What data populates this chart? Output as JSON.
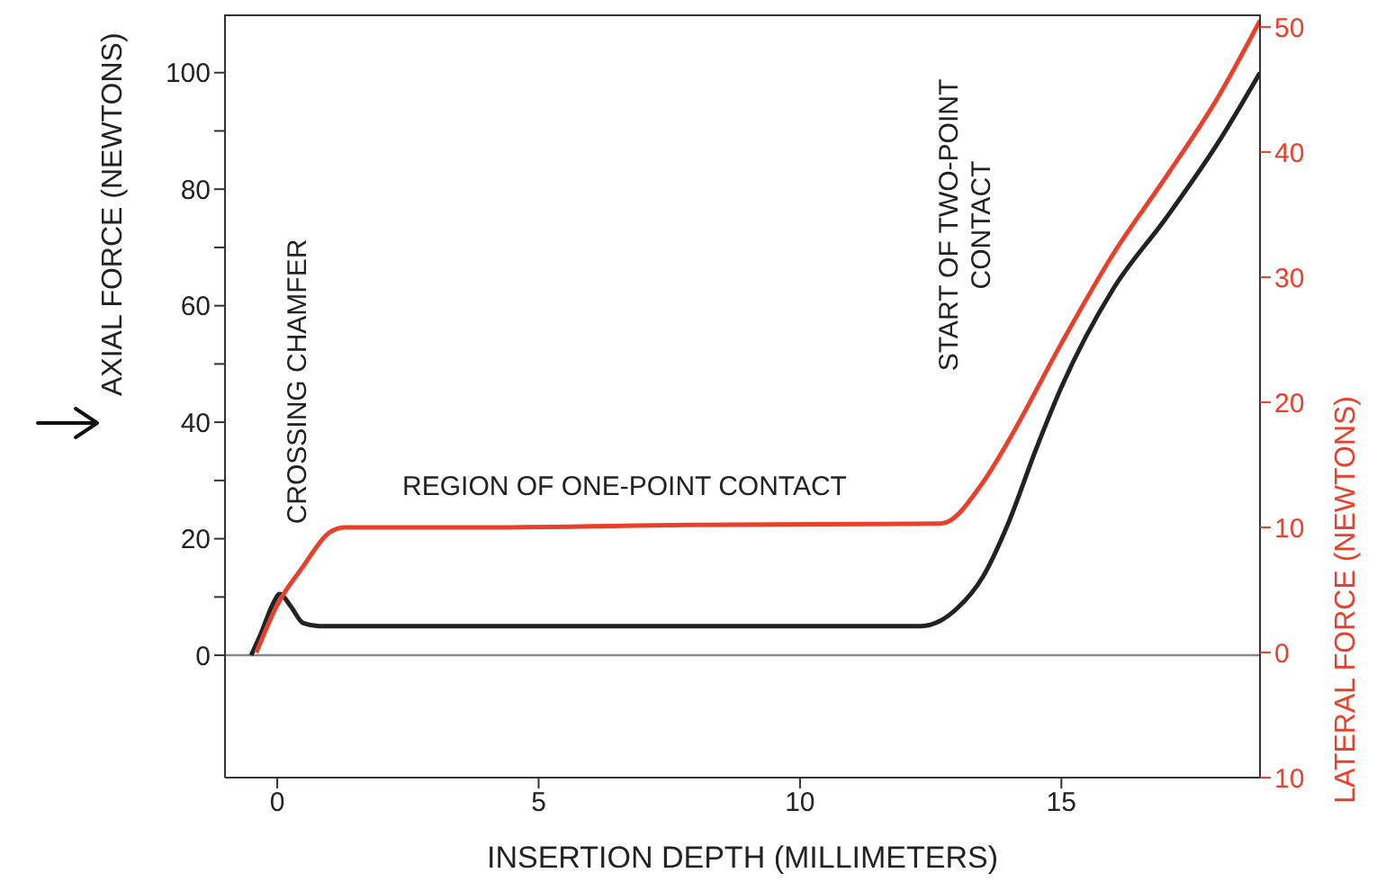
{
  "chart_data": {
    "type": "line",
    "xlabel": "INSERTION DEPTH (MILLIMETERS)",
    "ylabel": "AXIAL FORCE (NEWTONS)",
    "y2label": "LATERAL FORCE (NEWTONS)",
    "xlim": [
      -1,
      18.8
    ],
    "xticks": [
      0,
      5,
      10,
      15
    ],
    "ylim": [
      -21,
      110
    ],
    "yticks": [
      0,
      {
        "value": 10,
        "label": null
      },
      20,
      {
        "value": 30,
        "label": null
      },
      40,
      {
        "value": 50,
        "label": null
      },
      60,
      {
        "value": 70,
        "label": null
      },
      80,
      {
        "value": 90,
        "label": null
      },
      100
    ],
    "y2lim": [
      -10,
      51
    ],
    "y2ticks": [
      {
        "value": -10,
        "label": "10"
      },
      0,
      10,
      20,
      30,
      40,
      50
    ],
    "marker": "none",
    "line_style": "solid",
    "ref_lines": [
      {
        "axis": "y",
        "value": 0,
        "color": "#888888"
      }
    ],
    "series": [
      {
        "color": "#222222",
        "x": [
          -0.5,
          -0.3,
          -0.1,
          0.05,
          0.25,
          0.5,
          0.8,
          3,
          6,
          9,
          12.3,
          12.7,
          13,
          13.5,
          14,
          14.5,
          15,
          16,
          17,
          18,
          18.8
        ],
        "values": [
          0,
          4,
          8.5,
          10.5,
          8.5,
          5.5,
          5,
          5,
          5,
          5,
          5,
          6,
          8,
          13.5,
          23,
          35,
          46,
          63,
          75,
          88,
          100
        ]
      },
      {
        "color": "#e8402a",
        "axis": "y2",
        "x": [
          -0.4,
          0,
          0.5,
          1,
          1.3,
          4,
          8,
          12.7,
          13.5,
          14,
          15,
          16,
          17,
          18,
          18.8
        ],
        "values": [
          0,
          3.8,
          6.9,
          9.6,
          10,
          10,
          10.2,
          10.3,
          13.6,
          17,
          24.7,
          31.9,
          38,
          44.4,
          50.5
        ]
      }
    ],
    "annotations": [
      "CROSSING CHAMFER",
      "REGION OF ONE-POINT CONTACT",
      "START OF TWO-POINT CONTACT"
    ]
  }
}
